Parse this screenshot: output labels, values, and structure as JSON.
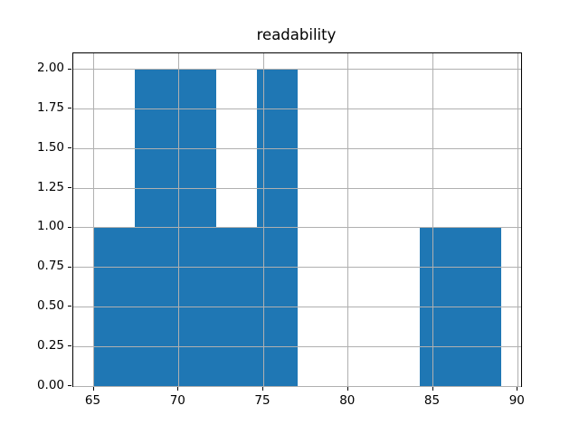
{
  "title": "readability",
  "chart_data": {
    "type": "bar",
    "subtype": "histogram",
    "title": "readability",
    "xlabel": "",
    "ylabel": "",
    "bin_edges": [
      65,
      67.4,
      69.8,
      72.2,
      74.6,
      77,
      79.4,
      81.8,
      84.2,
      86.6,
      89
    ],
    "counts": [
      1,
      2,
      2,
      1,
      2,
      0,
      0,
      0,
      1,
      1
    ],
    "xlim": [
      63.8,
      90.2
    ],
    "ylim": [
      0,
      2.1
    ],
    "x_tick_values": [
      65,
      70,
      75,
      80,
      85,
      90
    ],
    "x_tick_labels": [
      "65",
      "70",
      "75",
      "80",
      "85",
      "90"
    ],
    "y_tick_values": [
      0,
      0.25,
      0.5,
      0.75,
      1,
      1.25,
      1.5,
      1.75,
      2
    ],
    "y_tick_labels": [
      "0.00",
      "0.25",
      "0.50",
      "0.75",
      "1.00",
      "1.25",
      "1.50",
      "1.75",
      "2.00"
    ],
    "grid": true,
    "legend": null,
    "bar_color": "#1f77b4",
    "grid_color": "#b0b0b0",
    "spine_color": "#000000",
    "background_color": "#ffffff"
  }
}
